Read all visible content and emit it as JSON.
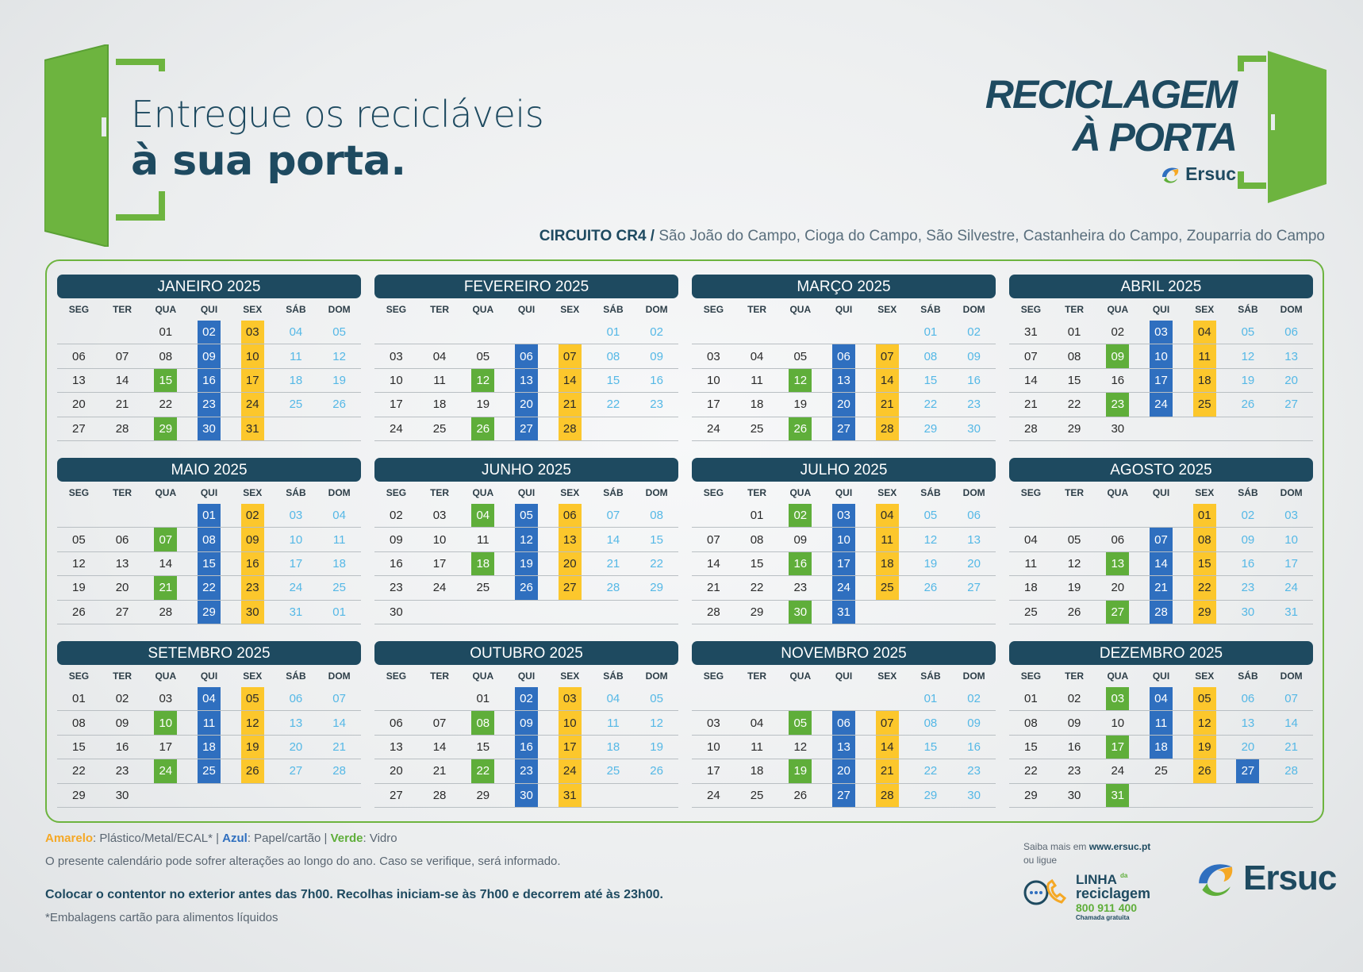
{
  "headline": {
    "line1": "Entregue os recicláveis",
    "line2": "à sua porta."
  },
  "brand": {
    "line1": "RECICLAGEM",
    "line2": "À PORTA",
    "logo_text": "Ersuc"
  },
  "circuit": {
    "code": "CIRCUITO CR4 /",
    "places": "São João do Campo, Cioga do Campo, São Silvestre, Castanheira do Campo, Zouparria do Campo"
  },
  "colors": {
    "amarelo": "#fcc72c",
    "azul": "#2f6fbf",
    "verde": "#5fae3a",
    "navy": "#1e4a60",
    "weekend": "#55b8e6"
  },
  "weekdays": [
    "SEG",
    "TER",
    "QUA",
    "QUI",
    "SEX",
    "SÁB",
    "DOM"
  ],
  "months": [
    {
      "title": "JANEIRO 2025",
      "weeks": [
        [
          "",
          "",
          "01",
          "02:b",
          "03:y",
          "04",
          "05"
        ],
        [
          "06",
          "07",
          "08",
          "09:b",
          "10:y",
          "11",
          "12"
        ],
        [
          "13",
          "14",
          "15:g",
          "16:b",
          "17:y",
          "18",
          "19"
        ],
        [
          "20",
          "21",
          "22",
          "23:b",
          "24:y",
          "25",
          "26"
        ],
        [
          "27",
          "28",
          "29:g",
          "30:b",
          "31:y",
          "",
          ""
        ]
      ]
    },
    {
      "title": "FEVEREIRO 2025",
      "weeks": [
        [
          "",
          "",
          "",
          "",
          "",
          "01",
          "02"
        ],
        [
          "03",
          "04",
          "05",
          "06:b",
          "07:y",
          "08",
          "09"
        ],
        [
          "10",
          "11",
          "12:g",
          "13:b",
          "14:y",
          "15",
          "16"
        ],
        [
          "17",
          "18",
          "19",
          "20:b",
          "21:y",
          "22",
          "23"
        ],
        [
          "24",
          "25",
          "26:g",
          "27:b",
          "28:y",
          "",
          ""
        ]
      ]
    },
    {
      "title": "MARÇO 2025",
      "weeks": [
        [
          "",
          "",
          "",
          "",
          "",
          "01",
          "02"
        ],
        [
          "03",
          "04",
          "05",
          "06:b",
          "07:y",
          "08",
          "09"
        ],
        [
          "10",
          "11",
          "12:g",
          "13:b",
          "14:y",
          "15",
          "16"
        ],
        [
          "17",
          "18",
          "19",
          "20:b",
          "21:y",
          "22",
          "23"
        ],
        [
          "24",
          "25",
          "26:g",
          "27:b",
          "28:y",
          "29",
          "30"
        ]
      ]
    },
    {
      "title": "ABRIL 2025",
      "weeks": [
        [
          "31",
          "01",
          "02",
          "03:b",
          "04:y",
          "05",
          "06"
        ],
        [
          "07",
          "08",
          "09:g",
          "10:b",
          "11:y",
          "12",
          "13"
        ],
        [
          "14",
          "15",
          "16",
          "17:b",
          "18:y",
          "19",
          "20"
        ],
        [
          "21",
          "22",
          "23:g",
          "24:b",
          "25:y",
          "26",
          "27"
        ],
        [
          "28",
          "29",
          "30",
          "",
          "",
          "",
          ""
        ]
      ]
    },
    {
      "title": "MAIO 2025",
      "weeks": [
        [
          "",
          "",
          "",
          "01:b",
          "02:y",
          "03",
          "04"
        ],
        [
          "05",
          "06",
          "07:g",
          "08:b",
          "09:y",
          "10",
          "11"
        ],
        [
          "12",
          "13",
          "14",
          "15:b",
          "16:y",
          "17",
          "18"
        ],
        [
          "19",
          "20",
          "21:g",
          "22:b",
          "23:y",
          "24",
          "25"
        ],
        [
          "26",
          "27",
          "28",
          "29:b",
          "30:y",
          "31",
          "01"
        ]
      ]
    },
    {
      "title": "JUNHO 2025",
      "weeks": [
        [
          "02",
          "03",
          "04:g",
          "05:b",
          "06:y",
          "07",
          "08"
        ],
        [
          "09",
          "10",
          "11",
          "12:b",
          "13:y",
          "14",
          "15"
        ],
        [
          "16",
          "17",
          "18:g",
          "19:b",
          "20:y",
          "21",
          "22"
        ],
        [
          "23",
          "24",
          "25",
          "26:b",
          "27:y",
          "28",
          "29"
        ],
        [
          "30",
          "",
          "",
          "",
          "",
          "",
          ""
        ]
      ]
    },
    {
      "title": "JULHO 2025",
      "weeks": [
        [
          "",
          "01",
          "02:g",
          "03:b",
          "04:y",
          "05",
          "06"
        ],
        [
          "07",
          "08",
          "09",
          "10:b",
          "11:y",
          "12",
          "13"
        ],
        [
          "14",
          "15",
          "16:g",
          "17:b",
          "18:y",
          "19",
          "20"
        ],
        [
          "21",
          "22",
          "23",
          "24:b",
          "25:y",
          "26",
          "27"
        ],
        [
          "28",
          "29",
          "30:g",
          "31:b",
          "",
          "",
          ""
        ]
      ]
    },
    {
      "title": "AGOSTO 2025",
      "weeks": [
        [
          "",
          "",
          "",
          "",
          "01:y",
          "02",
          "03"
        ],
        [
          "04",
          "05",
          "06",
          "07:b",
          "08:y",
          "09",
          "10"
        ],
        [
          "11",
          "12",
          "13:g",
          "14:b",
          "15:y",
          "16",
          "17"
        ],
        [
          "18",
          "19",
          "20",
          "21:b",
          "22:y",
          "23",
          "24"
        ],
        [
          "25",
          "26",
          "27:g",
          "28:b",
          "29:y",
          "30",
          "31"
        ]
      ]
    },
    {
      "title": "SETEMBRO 2025",
      "weeks": [
        [
          "01",
          "02",
          "03",
          "04:b",
          "05:y",
          "06",
          "07"
        ],
        [
          "08",
          "09",
          "10:g",
          "11:b",
          "12:y",
          "13",
          "14"
        ],
        [
          "15",
          "16",
          "17",
          "18:b",
          "19:y",
          "20",
          "21"
        ],
        [
          "22",
          "23",
          "24:g",
          "25:b",
          "26:y",
          "27",
          "28"
        ],
        [
          "29",
          "30",
          "",
          "",
          "",
          "",
          ""
        ]
      ]
    },
    {
      "title": "OUTUBRO 2025",
      "weeks": [
        [
          "",
          "",
          "01",
          "02:b",
          "03:y",
          "04",
          "05"
        ],
        [
          "06",
          "07",
          "08:g",
          "09:b",
          "10:y",
          "11",
          "12"
        ],
        [
          "13",
          "14",
          "15",
          "16:b",
          "17:y",
          "18",
          "19"
        ],
        [
          "20",
          "21",
          "22:g",
          "23:b",
          "24:y",
          "25",
          "26"
        ],
        [
          "27",
          "28",
          "29",
          "30:b",
          "31:y",
          "",
          ""
        ]
      ]
    },
    {
      "title": "NOVEMBRO 2025",
      "weeks": [
        [
          "",
          "",
          "",
          "",
          "",
          "01",
          "02"
        ],
        [
          "03",
          "04",
          "05:g",
          "06:b",
          "07:y",
          "08",
          "09"
        ],
        [
          "10",
          "11",
          "12",
          "13:b",
          "14:y",
          "15",
          "16"
        ],
        [
          "17",
          "18",
          "19:g",
          "20:b",
          "21:y",
          "22",
          "23"
        ],
        [
          "24",
          "25",
          "26",
          "27:b",
          "28:y",
          "29",
          "30"
        ]
      ]
    },
    {
      "title": "DEZEMBRO 2025",
      "weeks": [
        [
          "01",
          "02",
          "03:g",
          "04:b",
          "05:y",
          "06",
          "07"
        ],
        [
          "08",
          "09",
          "10",
          "11:b",
          "12:y",
          "13",
          "14"
        ],
        [
          "15",
          "16",
          "17:g",
          "18:b",
          "19:y",
          "20",
          "21"
        ],
        [
          "22",
          "23",
          "24",
          "25",
          "26:y",
          "27:b",
          "28"
        ],
        [
          "29",
          "30",
          "31:g",
          "",
          "",
          "",
          ""
        ]
      ]
    }
  ],
  "legend": {
    "amarelo_label": "Amarelo",
    "amarelo_text": ": Plástico/Metal/ECAL* | ",
    "azul_label": "Azul",
    "azul_text": ": Papel/cartão  | ",
    "verde_label": "Verde",
    "verde_text": ": Vidro"
  },
  "note": "O presente calendário pode sofrer alterações ao longo do ano. Caso se verifique, será informado.",
  "rule": "Colocar o contentor no exterior antes das 7h00. Recolhas iniciam-se às 7h00 e decorrem até às 23h00.",
  "footnote": "*Embalagens cartão para alimentos líquidos",
  "contact": {
    "saiba_prefix": "Saiba mais em ",
    "website": "www.ersuc.pt",
    "ou_ligue": "ou ligue",
    "linha_title": "LINHA",
    "linha_da": "da",
    "linha_sub": "reciclagem",
    "phone": "800 911 400",
    "free_call": "Chamada gratuita"
  },
  "logo_big": "Ersuc"
}
